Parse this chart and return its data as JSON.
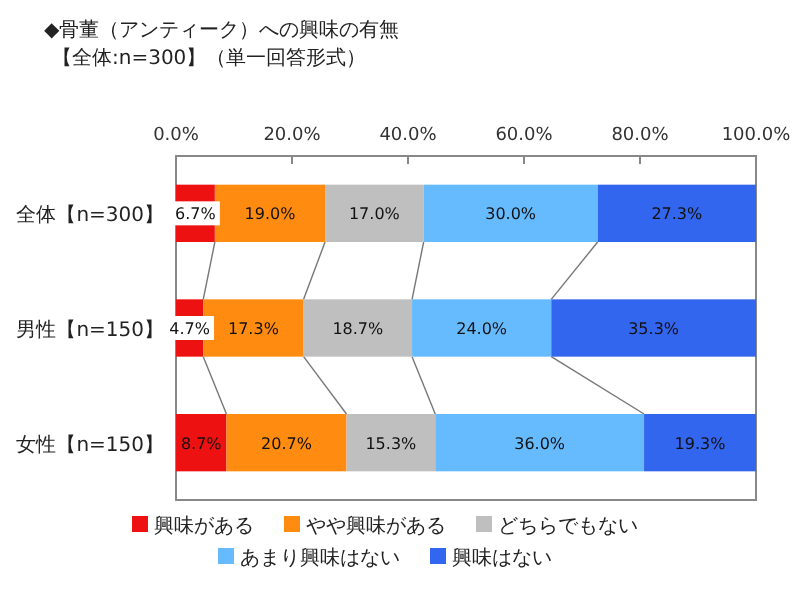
{
  "chart_data": {
    "type": "bar",
    "orientation": "horizontal",
    "stacked": true,
    "title": "◆骨董（アンティーク）への興味の有無",
    "subtitle": "【全体:n=300】（単一回答形式）",
    "categories": [
      "全体【n=300】",
      "男性【n=150】",
      "女性【n=150】"
    ],
    "series": [
      {
        "name": "興味がある",
        "color": "#ee1111",
        "values": [
          6.7,
          4.7,
          8.7
        ]
      },
      {
        "name": "やや興味がある",
        "color": "#ff8c11",
        "values": [
          19.0,
          17.3,
          20.7
        ]
      },
      {
        "name": "どちらでもない",
        "color": "#bfbfbf",
        "values": [
          17.0,
          18.7,
          15.3
        ]
      },
      {
        "name": "あまり興味はない",
        "color": "#66bbff",
        "values": [
          30.0,
          24.0,
          36.0
        ]
      },
      {
        "name": "興味はない",
        "color": "#3366ee",
        "values": [
          27.3,
          35.3,
          19.3
        ]
      }
    ],
    "xlim": [
      0,
      100
    ],
    "xticks": [
      {
        "value": 0,
        "label": "0.0%"
      },
      {
        "value": 20,
        "label": "20.0%"
      },
      {
        "value": 40,
        "label": "40.0%"
      },
      {
        "value": 60,
        "label": "60.0%"
      },
      {
        "value": 80,
        "label": "80.0%"
      },
      {
        "value": 100,
        "label": "100.0%"
      }
    ],
    "value_labels": [
      [
        "6.7%",
        "4.7%",
        "8.7%"
      ],
      [
        "19.0%",
        "17.3%",
        "20.7%"
      ],
      [
        "17.0%",
        "18.7%",
        "15.3%"
      ],
      [
        "30.0%",
        "24.0%",
        "36.0%"
      ],
      [
        "27.3%",
        "35.3%",
        "19.3%"
      ]
    ],
    "legend": "bottom"
  }
}
